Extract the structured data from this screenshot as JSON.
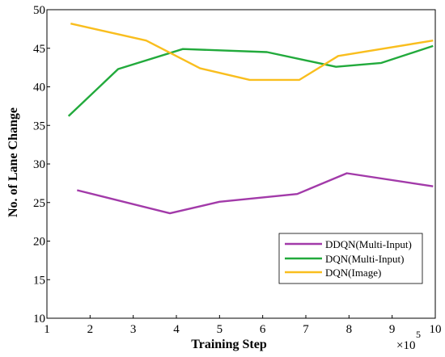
{
  "chart_data": {
    "type": "line",
    "xlabel": "Training Step",
    "ylabel": "No. of Lane Change",
    "x_multiplier_label": "×10",
    "x_multiplier_exponent": "5",
    "xlim": [
      1,
      10
    ],
    "ylim": [
      10,
      50
    ],
    "x_ticks": [
      "1",
      "2",
      "3",
      "4",
      "5",
      "6",
      "7",
      "8",
      "9",
      "10"
    ],
    "y_ticks": [
      "10",
      "15",
      "20",
      "25",
      "30",
      "35",
      "40",
      "45",
      "50"
    ],
    "legend_position": "bottom-right",
    "grid": false,
    "series": [
      {
        "name": "DDQN(Multi-Input)",
        "color": "#A23AA9",
        "points": [
          [
            1.7,
            26.6
          ],
          [
            3.85,
            23.6
          ],
          [
            5.0,
            25.1
          ],
          [
            6.8,
            26.1
          ],
          [
            7.95,
            28.8
          ],
          [
            9.95,
            27.1
          ]
        ]
      },
      {
        "name": "DQN(Multi-Input)",
        "color": "#22AA3C",
        "points": [
          [
            1.5,
            36.2
          ],
          [
            2.65,
            42.3
          ],
          [
            4.15,
            44.9
          ],
          [
            6.1,
            44.5
          ],
          [
            7.7,
            42.6
          ],
          [
            8.75,
            43.1
          ],
          [
            9.95,
            45.3
          ]
        ]
      },
      {
        "name": "DQN(Image)",
        "color": "#F9BE1E",
        "points": [
          [
            1.55,
            48.2
          ],
          [
            3.3,
            46.0
          ],
          [
            4.55,
            42.4
          ],
          [
            5.7,
            40.9
          ],
          [
            6.85,
            40.9
          ],
          [
            7.75,
            44.0
          ],
          [
            9.95,
            46.0
          ]
        ]
      }
    ]
  }
}
